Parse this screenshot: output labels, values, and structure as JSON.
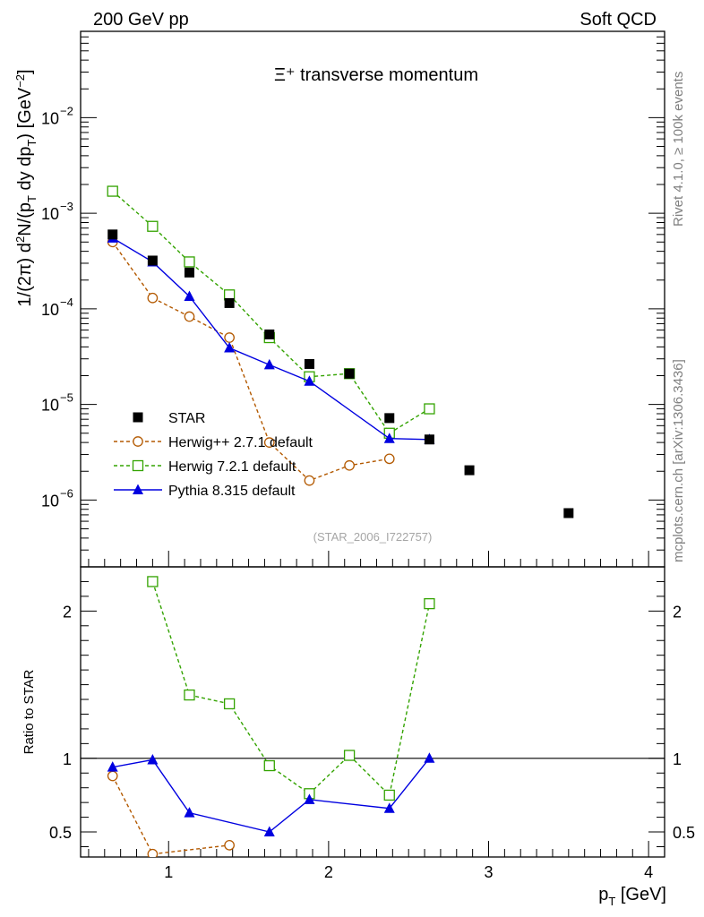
{
  "header": {
    "left": "200 GeV pp",
    "right": "Soft QCD"
  },
  "side_labels": {
    "rivet": "Rivet 4.1.0, ≥ 100k events",
    "mcplots": "mcplots.cern.ch [arXiv:1306.3436]"
  },
  "watermark": "(STAR_2006_I722757)",
  "colors": {
    "star": "#000000",
    "herwigpp": "#b35900",
    "herwig7": "#33a300",
    "pythia": "#0000e0"
  },
  "chart_data": [
    {
      "type": "line",
      "title": "Ξ⁺ transverse momentum",
      "ylabel": "1/(2π)  d²N/(p_T dy dp_T) [GeV⁻²]",
      "yscale": "log",
      "xlim": [
        0.45,
        4.1
      ],
      "ylim": [
        2e-07,
        0.08
      ],
      "y_ticks": [
        {
          "value": 1e-06,
          "label": "10",
          "exp": "−6"
        },
        {
          "value": 1e-05,
          "label": "10",
          "exp": "−5"
        },
        {
          "value": 0.0001,
          "label": "10",
          "exp": "−4"
        },
        {
          "value": 0.001,
          "label": "10",
          "exp": "−3"
        },
        {
          "value": 0.01,
          "label": "10",
          "exp": "−2"
        }
      ],
      "legend_position": "bottom-left",
      "series": [
        {
          "name": "STAR",
          "style": "data",
          "x": [
            0.65,
            0.9,
            1.13,
            1.38,
            1.63,
            1.88,
            2.13,
            2.38,
            2.63,
            2.88,
            3.5
          ],
          "y": [
            0.0006,
            0.00032,
            0.00024,
            0.000115,
            5.4e-05,
            2.65e-05,
            2.1e-05,
            7.2e-06,
            4.3e-06,
            2.05e-06,
            7.3e-07
          ]
        },
        {
          "name": "Herwig++ 2.7.1 default",
          "style": "herwigpp",
          "x": [
            0.65,
            0.9,
            1.13,
            1.38,
            1.63,
            1.88,
            2.13,
            2.38
          ],
          "y": [
            0.0005,
            0.00013,
            8.3e-05,
            5e-05,
            4e-06,
            1.6e-06,
            2.3e-06,
            2.7e-06
          ]
        },
        {
          "name": "Herwig 7.2.1 default",
          "style": "herwig7",
          "x": [
            0.65,
            0.9,
            1.13,
            1.38,
            1.63,
            1.88,
            2.13,
            2.38,
            2.63
          ],
          "y": [
            0.0017,
            0.00073,
            0.00031,
            0.00014,
            5e-05,
            1.95e-05,
            2.1e-05,
            5e-06,
            9e-06
          ]
        },
        {
          "name": "Pythia 8.315 default",
          "style": "pythia",
          "x": [
            0.65,
            0.9,
            1.13,
            1.38,
            1.63,
            1.88,
            2.38,
            2.63
          ],
          "y": [
            0.00055,
            0.00031,
            0.000135,
            3.9e-05,
            2.6e-05,
            1.75e-05,
            4.4e-06,
            4.3e-06
          ]
        }
      ]
    },
    {
      "type": "line",
      "ylabel": "Ratio to STAR",
      "xlabel": "p_T [GeV]",
      "xlim": [
        0.45,
        4.1
      ],
      "ylim": [
        0.33,
        2.3
      ],
      "x_ticks": [
        "1",
        "2",
        "3",
        "4"
      ],
      "y_ticks": [
        "0.5",
        "1",
        "2"
      ],
      "series": [
        {
          "name": "Herwig++ 2.7.1 default",
          "style": "herwigpp",
          "x": [
            0.65,
            0.9,
            1.38
          ],
          "y": [
            0.88,
            0.35,
            0.41
          ]
        },
        {
          "name": "Herwig 7.2.1 default",
          "style": "herwig7",
          "x": [
            0.9,
            1.13,
            1.38,
            1.63,
            1.88,
            2.13,
            2.38,
            2.63
          ],
          "y": [
            2.2,
            1.43,
            1.37,
            0.95,
            0.76,
            1.02,
            0.75,
            2.05
          ]
        },
        {
          "name": "Pythia 8.315 default",
          "style": "pythia",
          "x": [
            0.65,
            0.9,
            1.13,
            1.63,
            1.88,
            2.38,
            2.63
          ],
          "y": [
            0.94,
            0.99,
            0.63,
            0.5,
            0.72,
            0.66,
            1.0
          ]
        }
      ]
    }
  ]
}
